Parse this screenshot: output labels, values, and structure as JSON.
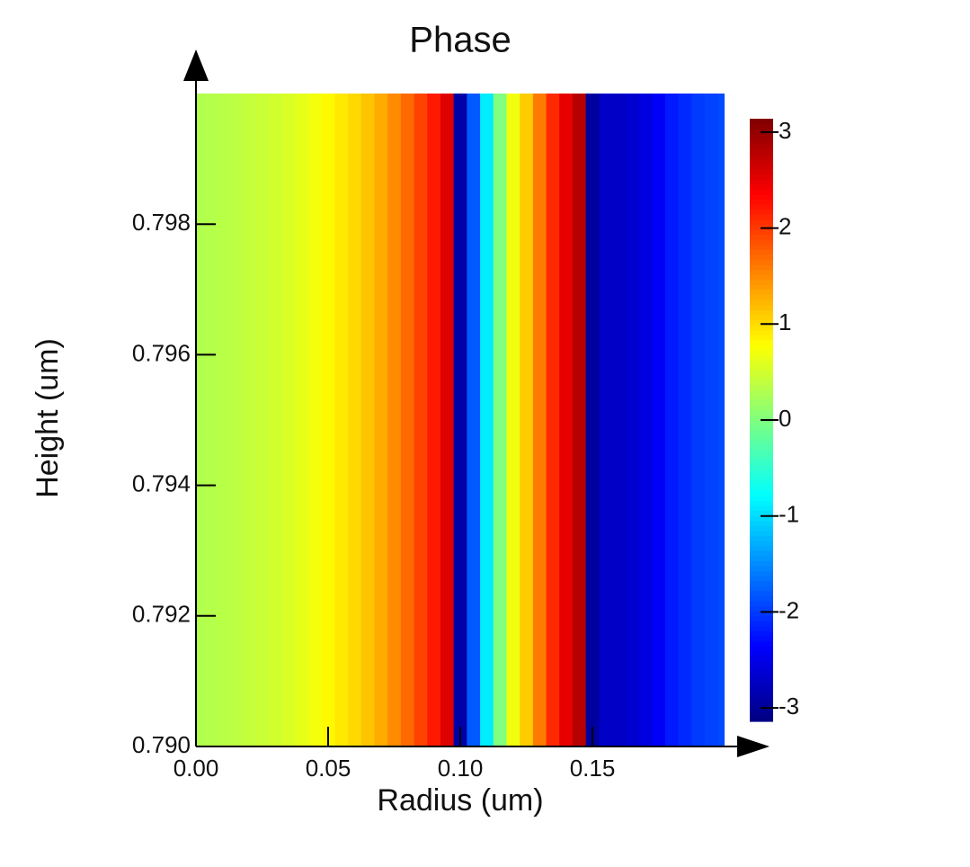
{
  "chart_data": {
    "type": "heatmap",
    "title": "Phase",
    "x_label": "Radius (um)",
    "y_label": "Height (um)",
    "colormap": "jet",
    "x": [
      0,
      0.005,
      0.01,
      0.015,
      0.02,
      0.025,
      0.03,
      0.035,
      0.04,
      0.045,
      0.05,
      0.055,
      0.06,
      0.065,
      0.07,
      0.075,
      0.08,
      0.085,
      0.09,
      0.095,
      0.1,
      0.105,
      0.11,
      0.115,
      0.12,
      0.125,
      0.13,
      0.135,
      0.14,
      0.145,
      0.15,
      0.155,
      0.16,
      0.165,
      0.17,
      0.175,
      0.18,
      0.185,
      0.19,
      0.195,
      0.2
    ],
    "values": [
      0.3,
      0.32,
      0.35,
      0.38,
      0.42,
      0.46,
      0.5,
      0.56,
      0.63,
      0.72,
      0.82,
      0.92,
      1.02,
      1.15,
      1.3,
      1.5,
      1.7,
      1.95,
      2.2,
      2.55,
      -2.9,
      -1.8,
      -0.9,
      0.0,
      0.7,
      1.1,
      1.6,
      2.1,
      2.5,
      2.8,
      -2.95,
      -2.7,
      -2.7,
      -2.65,
      -2.55,
      -2.4,
      -2.2,
      -2.1,
      -2.0,
      -1.95,
      -1.9
    ],
    "xlim": [
      0,
      0.2
    ],
    "xticks": [
      {
        "value": 0,
        "label": "0.00"
      },
      {
        "value": 0.05,
        "label": "0.05"
      },
      {
        "value": 0.1,
        "label": "0.10"
      },
      {
        "value": 0.15,
        "label": "0.15"
      }
    ],
    "ylim": [
      0.79,
      0.8
    ],
    "yticks": [
      {
        "value": 0.79,
        "label": "0.790"
      },
      {
        "value": 0.792,
        "label": "0.792"
      },
      {
        "value": 0.794,
        "label": "0.794"
      },
      {
        "value": 0.796,
        "label": "0.796"
      },
      {
        "value": 0.798,
        "label": "0.798"
      }
    ],
    "zlim": [
      -3.14,
      3.14
    ],
    "zticks": [
      -3,
      -2,
      -1,
      0,
      1,
      2,
      3
    ]
  }
}
